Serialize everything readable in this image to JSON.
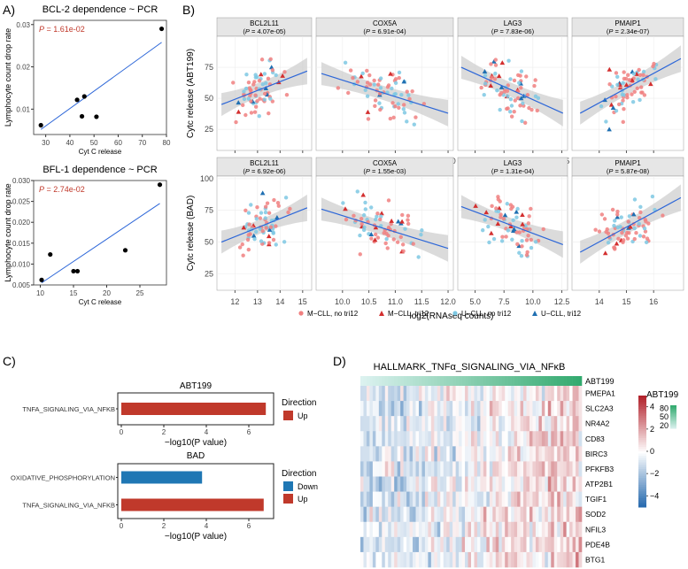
{
  "panel_labels": [
    "A)",
    "B)",
    "C)",
    "D)"
  ],
  "colors": {
    "red": "#f08080",
    "darkred": "#d32f2f",
    "blue": "#7ec8e3",
    "darkblue": "#1f6fb2",
    "fit": "#2c66d8",
    "band": "#cfcfcf",
    "strip": "#e6e6e6",
    "bar_up": "#c0392b",
    "bar_down": "#1f77b4",
    "pval": "#c0392b"
  },
  "chart_data": [
    {
      "id": "A1",
      "type": "scatter",
      "title": "BCL-2 dependence ~ PCR",
      "xlabel": "Cyt C release",
      "ylabel": "Lymphocyte count drop rate",
      "pvalue": "1.61e-02",
      "xlim": [
        25,
        80
      ],
      "ylim": [
        0.004,
        0.031
      ],
      "xticks": [
        "30",
        "40",
        "50",
        "60",
        "70",
        "80"
      ],
      "xtick_values": [
        30,
        40,
        50,
        60,
        70,
        80
      ],
      "yticks": [
        "0.01",
        "0.02",
        "0.03"
      ],
      "ytick_values": [
        0.01,
        0.02,
        0.03
      ],
      "x": [
        28,
        43,
        45,
        46,
        51,
        78
      ],
      "y": [
        0.0062,
        0.0122,
        0.0083,
        0.013,
        0.0082,
        0.029
      ],
      "fit": [
        [
          28,
          0.0052
        ],
        [
          78,
          0.0258
        ]
      ]
    },
    {
      "id": "A2",
      "type": "scatter",
      "title": "BFL-1 dependence ~ PCR",
      "xlabel": "Cyt C release",
      "ylabel": "Lymphocyte count drop rate",
      "pvalue": "2.74e-02",
      "xlim": [
        9,
        29
      ],
      "ylim": [
        0.005,
        0.03
      ],
      "xticks": [
        "10",
        "15",
        "20",
        "25"
      ],
      "xtick_values": [
        10,
        15,
        20,
        25
      ],
      "yticks": [
        "0.005",
        "0.010",
        "0.015",
        "0.020",
        "0.025",
        "0.030"
      ],
      "ytick_values": [
        0.005,
        0.01,
        0.015,
        0.02,
        0.025,
        0.03
      ],
      "x": [
        10.2,
        11.5,
        15.0,
        15.6,
        22.8,
        28.0
      ],
      "y": [
        0.0062,
        0.0123,
        0.0083,
        0.0083,
        0.0133,
        0.029
      ],
      "fit": [
        [
          10.2,
          0.0055
        ],
        [
          28.0,
          0.0245
        ]
      ]
    },
    {
      "id": "B",
      "type": "scatter",
      "xlabel": "log2(RNAseq counts)",
      "rows": [
        {
          "ylabel": "Cytc release (ABT199)",
          "ylim": [
            8,
            100
          ],
          "yticks": [
            "25",
            "50",
            "75"
          ],
          "ytick_values": [
            25,
            50,
            75
          ]
        },
        {
          "ylabel": "Cytc release (BAD)",
          "ylim": [
            12,
            102
          ],
          "yticks": [
            "25",
            "50",
            "75",
            "100"
          ],
          "ytick_values": [
            25,
            50,
            75,
            100
          ]
        }
      ],
      "genes": [
        {
          "name": "BCL2L11",
          "xlim": [
            11.2,
            15.4
          ],
          "xticks": [
            "12",
            "13",
            "14",
            "15"
          ],
          "xtick_values": [
            12,
            13,
            14,
            15
          ]
        },
        {
          "name": "COX5A",
          "xlim": [
            9.5,
            12.1
          ],
          "xticks": [
            "10.0",
            "10.5",
            "11.0",
            "11.5",
            "12.0"
          ],
          "xtick_values": [
            10.0,
            10.5,
            11.0,
            11.5,
            12.0
          ]
        },
        {
          "name": "LAG3",
          "xlim": [
            3.5,
            13.0
          ],
          "xticks": [
            "5.0",
            "7.5",
            "10.0",
            "12.5"
          ],
          "xtick_values": [
            5.0,
            7.5,
            10.0,
            12.5
          ]
        },
        {
          "name": "PMAIP1",
          "xlim": [
            13.0,
            17.1
          ],
          "xticks": [
            "14",
            "15",
            "16"
          ],
          "xtick_values": [
            14,
            15,
            16
          ]
        }
      ],
      "facets": [
        {
          "row": 0,
          "gene": 0,
          "pvalue": "4.07e-05",
          "fit": [
            [
              11.4,
              45
            ],
            [
              15.2,
              72
            ]
          ]
        },
        {
          "row": 0,
          "gene": 1,
          "pvalue": "6.91e-04",
          "fit": [
            [
              9.6,
              70
            ],
            [
              12.0,
              38
            ]
          ]
        },
        {
          "row": 0,
          "gene": 2,
          "pvalue": "7.83e-06",
          "fit": [
            [
              3.8,
              75
            ],
            [
              12.6,
              38
            ]
          ]
        },
        {
          "row": 0,
          "gene": 3,
          "pvalue": "2.34e-07",
          "fit": [
            [
              13.3,
              38
            ],
            [
              17.0,
              82
            ]
          ]
        },
        {
          "row": 1,
          "gene": 0,
          "pvalue": "6.92e-06",
          "fit": [
            [
              11.4,
              50
            ],
            [
              15.2,
              77
            ]
          ]
        },
        {
          "row": 1,
          "gene": 1,
          "pvalue": "1.55e-03",
          "fit": [
            [
              9.6,
              76
            ],
            [
              12.0,
              45
            ]
          ]
        },
        {
          "row": 1,
          "gene": 2,
          "pvalue": "1.31e-04",
          "fit": [
            [
              3.8,
              78
            ],
            [
              12.6,
              48
            ]
          ]
        },
        {
          "row": 1,
          "gene": 3,
          "pvalue": "5.87e-08",
          "fit": [
            [
              13.3,
              42
            ],
            [
              17.0,
              85
            ]
          ]
        }
      ],
      "legend": [
        "M−CLL, no tri12",
        "M−CLL, tri12",
        "U−CLL, no tri12",
        "U−CLL, tri12"
      ],
      "n_points_per_facet": 70
    },
    {
      "id": "C",
      "type": "bar",
      "orientation": "horizontal",
      "xlabel": "−log10(P value)",
      "xlim": [
        0,
        7
      ],
      "xticks": [
        "0",
        "2",
        "4",
        "6"
      ],
      "xtick_values": [
        0,
        2,
        4,
        6
      ],
      "legend_title": "Direction",
      "subplots": [
        {
          "title": "ABT199",
          "categories": [
            "TNFA_SIGNALING_VIA_NFKB"
          ],
          "values": [
            6.8
          ],
          "directions": [
            "Up"
          ],
          "legend": [
            "Up"
          ]
        },
        {
          "title": "BAD",
          "categories": [
            "OXIDATIVE_PHOSPHORYLATION",
            "TNFA_SIGNALING_VIA_NFKB"
          ],
          "values": [
            3.8,
            6.7
          ],
          "directions": [
            "Down",
            "Up"
          ],
          "legend": [
            "Down",
            "Up"
          ]
        }
      ]
    },
    {
      "id": "D",
      "type": "heatmap",
      "title": "HALLMARK_TNFα_SIGNALING_VIA_NFκB",
      "annotation_label": "ABT199",
      "rows": [
        "PMEPA1",
        "SLC2A3",
        "NR4A2",
        "CD83",
        "BIRC3",
        "PFKFB3",
        "ATP2B1",
        "TGIF1",
        "SOD2",
        "NFIL3",
        "PDE4B",
        "BTG1"
      ],
      "n_columns": 72,
      "value_range": [
        -5,
        5
      ],
      "colorbar_ticks": [
        "4",
        "2",
        "0",
        "−2",
        "−4"
      ],
      "colorbar_tick_values": [
        4,
        2,
        0,
        -2,
        -4
      ],
      "annotation_legend_title": "ABT199",
      "annotation_ticks": [
        "80",
        "50",
        "20"
      ],
      "annotation_tick_values": [
        80,
        50,
        20
      ]
    }
  ]
}
